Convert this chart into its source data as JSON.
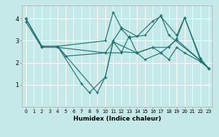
{
  "xlabel": "Humidex (Indice chaleur)",
  "xlim": [
    -0.5,
    23.5
  ],
  "ylim": [
    0,
    4.6
  ],
  "yticks": [
    1,
    2,
    3,
    4
  ],
  "xticks": [
    0,
    1,
    2,
    3,
    4,
    5,
    6,
    7,
    8,
    9,
    10,
    11,
    12,
    13,
    14,
    15,
    16,
    17,
    18,
    19,
    20,
    21,
    22,
    23
  ],
  "bg_color": "#c5e8e8",
  "grid_color": "#ffffff",
  "line_color": "#1e7070",
  "lines": [
    {
      "x": [
        0,
        2,
        4,
        10,
        11,
        12,
        14,
        16,
        17,
        19,
        20,
        22,
        23
      ],
      "y": [
        4.0,
        2.75,
        2.75,
        3.0,
        4.3,
        3.6,
        3.2,
        3.9,
        4.1,
        3.25,
        4.05,
        2.2,
        1.75
      ]
    },
    {
      "x": [
        0,
        2,
        4,
        7,
        8,
        10,
        11,
        12,
        14,
        15,
        17,
        18,
        19,
        20,
        22,
        23
      ],
      "y": [
        4.0,
        2.75,
        2.75,
        1.05,
        0.65,
        1.35,
        2.95,
        2.5,
        2.45,
        2.15,
        2.45,
        2.15,
        2.7,
        2.45,
        2.05,
        1.75
      ]
    },
    {
      "x": [
        0,
        2,
        4,
        9,
        10,
        11,
        12,
        13,
        15,
        17,
        18,
        22,
        23
      ],
      "y": [
        4.0,
        2.75,
        2.75,
        0.65,
        1.35,
        3.0,
        3.55,
        3.15,
        3.25,
        4.15,
        3.25,
        2.1,
        1.75
      ]
    },
    {
      "x": [
        0,
        2,
        4,
        5,
        10,
        11,
        14,
        16,
        17,
        19,
        22,
        23
      ],
      "y": [
        4.0,
        2.75,
        2.75,
        2.3,
        2.45,
        2.95,
        2.45,
        2.7,
        2.45,
        3.05,
        2.1,
        1.75
      ]
    },
    {
      "x": [
        0,
        2,
        4,
        10,
        12,
        13,
        14,
        16,
        18,
        19,
        20,
        22,
        23
      ],
      "y": [
        3.85,
        2.7,
        2.7,
        2.45,
        2.45,
        3.2,
        2.45,
        2.7,
        2.7,
        3.1,
        4.05,
        2.1,
        1.75
      ]
    }
  ]
}
